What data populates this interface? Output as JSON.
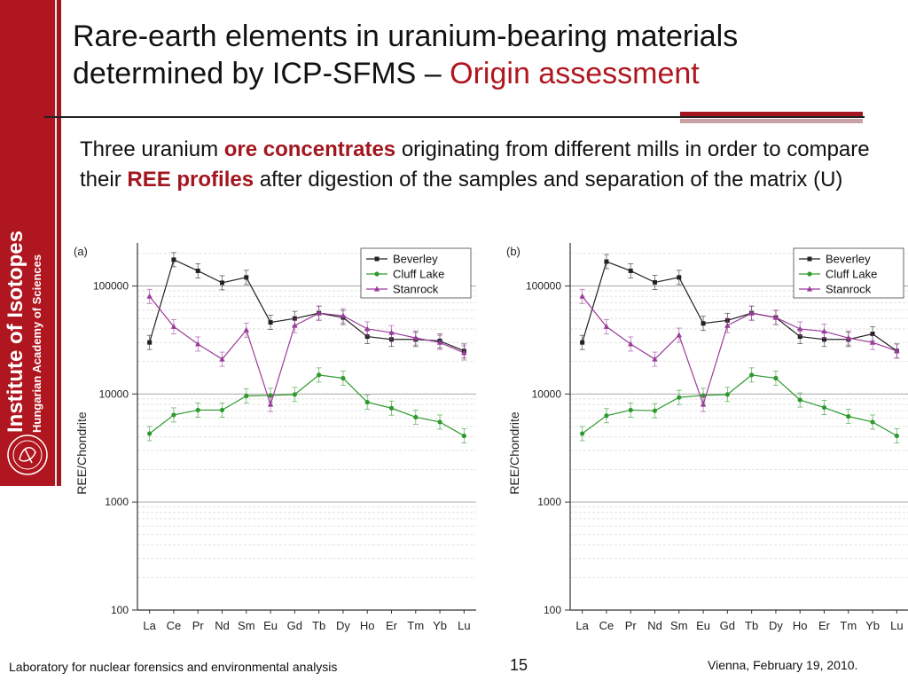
{
  "sidebar": {
    "institute": "Institute of Isotopes",
    "academy": "Hungarian Academy of Sciences"
  },
  "title": {
    "line1": "Rare-earth elements in uranium-bearing materials",
    "line2_prefix": "determined by ICP-SFMS – ",
    "line2_accent": "Origin assessment"
  },
  "body": {
    "part1": "Three uranium ",
    "hl1": "ore concentrates",
    "part2": " originating from different mills in order to compare their ",
    "hl2": "REE profiles",
    "part3": " after digestion of the samples and separation of the matrix (U)"
  },
  "colors": {
    "beverley": "#222222",
    "cluff_lake": "#2e9a2e",
    "stanrock": "#9a3c9a",
    "accent": "#a3161f"
  },
  "chart_data": [
    {
      "type": "line",
      "panel_label": "(a)",
      "ylabel": "REE/Chondrite",
      "xlabel": "",
      "yscale": "log",
      "ylim": [
        100,
        250000
      ],
      "yticks": [
        100,
        1000,
        10000,
        100000
      ],
      "ytick_labels": [
        "100",
        "1000",
        "10000",
        "100000"
      ],
      "legend": "top-right",
      "grid": true,
      "categories": [
        "La",
        "Ce",
        "Pr",
        "Nd",
        "Sm",
        "Eu",
        "Gd",
        "Tb",
        "Dy",
        "Ho",
        "Er",
        "Tm",
        "Yb",
        "Lu"
      ],
      "series": [
        {
          "name": "Beverley",
          "color": "#222222",
          "marker": "square",
          "values": [
            30000,
            175000,
            138000,
            107000,
            120000,
            46000,
            50000,
            56000,
            51000,
            34000,
            32000,
            32000,
            31000,
            25000
          ]
        },
        {
          "name": "Cluff Lake",
          "color": "#2e9a2e",
          "marker": "circle",
          "values": [
            4300,
            6400,
            7100,
            7100,
            9600,
            9700,
            9900,
            15000,
            14000,
            8400,
            7400,
            6100,
            5500,
            4100
          ]
        },
        {
          "name": "Stanrock",
          "color": "#9a3c9a",
          "marker": "triangle",
          "values": [
            80000,
            42000,
            29000,
            21000,
            39000,
            8000,
            43000,
            56000,
            53000,
            40000,
            37000,
            33000,
            30000,
            24000
          ]
        }
      ]
    },
    {
      "type": "line",
      "panel_label": "(b)",
      "ylabel": "REE/Chondrite",
      "xlabel": "",
      "yscale": "log",
      "ylim": [
        100,
        250000
      ],
      "yticks": [
        100,
        1000,
        10000,
        100000
      ],
      "ytick_labels": [
        "100",
        "1000",
        "10000",
        "100000"
      ],
      "legend": "top-right",
      "grid": true,
      "categories": [
        "La",
        "Ce",
        "Pr",
        "Nd",
        "Sm",
        "Eu",
        "Gd",
        "Tb",
        "Dy",
        "Ho",
        "Er",
        "Tm",
        "Yb",
        "Lu"
      ],
      "series": [
        {
          "name": "Beverley",
          "color": "#222222",
          "marker": "square",
          "values": [
            30000,
            168000,
            138000,
            108000,
            120000,
            45000,
            48000,
            56000,
            51000,
            34000,
            32000,
            32000,
            36000,
            25000
          ]
        },
        {
          "name": "Cluff Lake",
          "color": "#2e9a2e",
          "marker": "circle",
          "values": [
            4300,
            6300,
            7100,
            7000,
            9300,
            9700,
            9900,
            15000,
            14000,
            8800,
            7500,
            6200,
            5500,
            4100
          ]
        },
        {
          "name": "Stanrock",
          "color": "#9a3c9a",
          "marker": "triangle",
          "values": [
            80000,
            42000,
            29000,
            21000,
            35000,
            8000,
            43000,
            56000,
            51000,
            40000,
            38000,
            33000,
            30000,
            25000
          ]
        }
      ]
    }
  ],
  "footer": {
    "left": "Laboratory for nuclear forensics and environmental analysis",
    "page": "15",
    "right": "Vienna, February 19, 2010."
  }
}
